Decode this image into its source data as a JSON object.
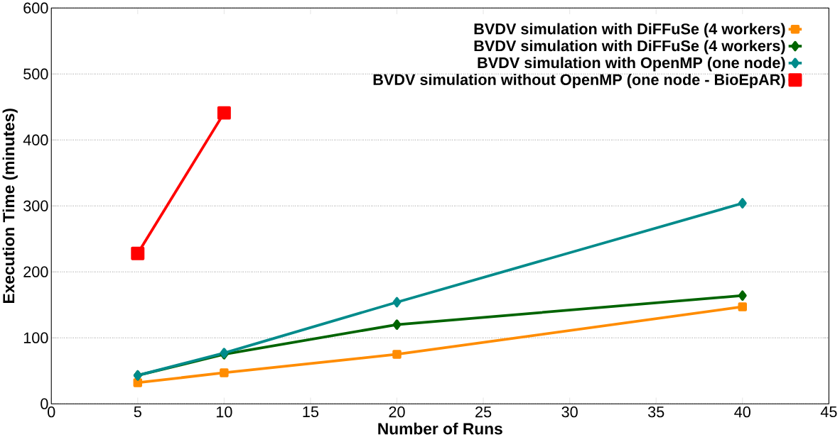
{
  "chart_data": {
    "type": "line",
    "xlabel": "Number of Runs",
    "ylabel": "Execution Time (minutes)",
    "xlim": [
      0,
      45
    ],
    "xticks": [
      0,
      5,
      10,
      15,
      20,
      25,
      30,
      35,
      40,
      45
    ],
    "ylim": [
      0,
      600
    ],
    "yticks": [
      0,
      100,
      200,
      300,
      400,
      500,
      600
    ],
    "grid": "y",
    "legend": "top right",
    "line_style": "solid",
    "series": [
      {
        "name": "BVDV simulation with DiFFuSe (4 workers)",
        "color": "#ff8c00",
        "marker": "square",
        "x": [
          5,
          10,
          20,
          40
        ],
        "values": [
          32,
          47,
          75,
          147
        ]
      },
      {
        "name": "BVDV simulation with DiFFuSe (4 workers)",
        "color": "#006400",
        "marker": "diamond",
        "x": [
          5,
          10,
          20,
          40
        ],
        "values": [
          43,
          75,
          120,
          164
        ]
      },
      {
        "name": "BVDV simulation with OpenMP (one node)",
        "color": "#008b8b",
        "marker": "diamond",
        "x": [
          5,
          10,
          20,
          40
        ],
        "values": [
          43,
          77,
          154,
          304
        ]
      },
      {
        "name": "BVDV simulation without OpenMP (one node - BioEpAR)",
        "color": "#ff0000",
        "marker": "square",
        "x": [
          5,
          10
        ],
        "values": [
          228,
          441
        ]
      }
    ]
  }
}
